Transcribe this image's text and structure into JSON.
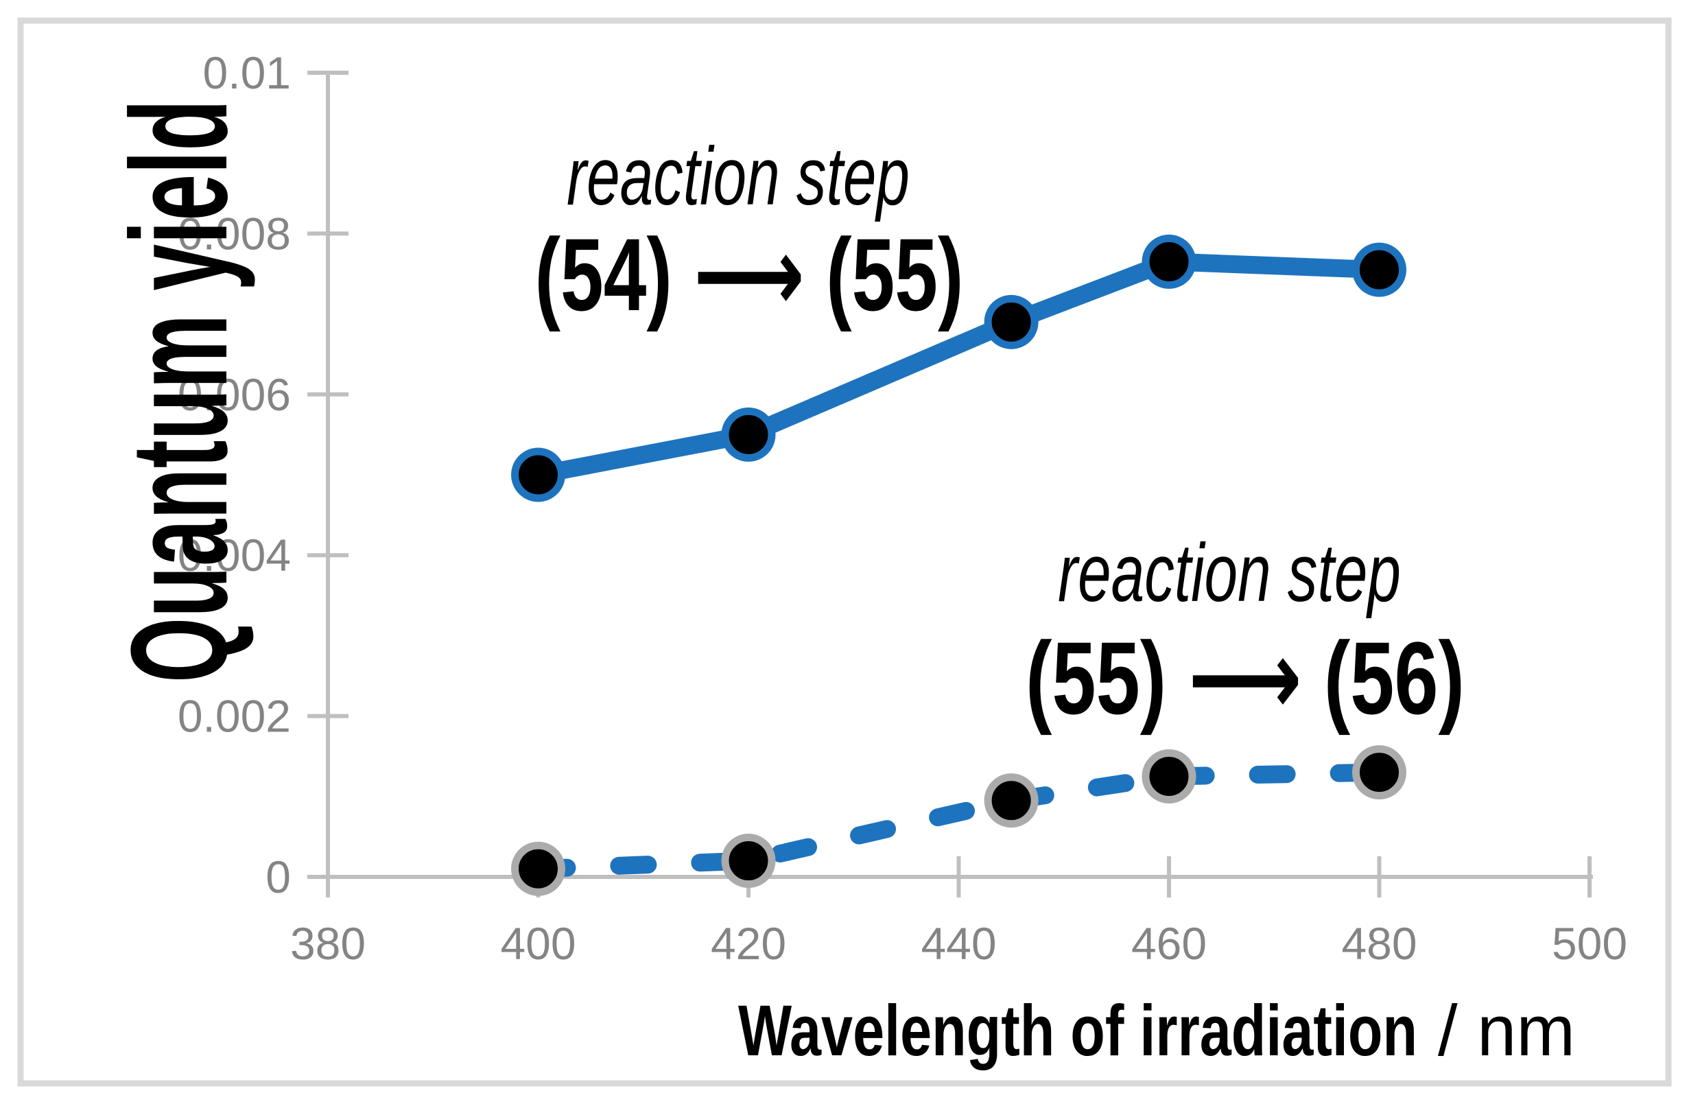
{
  "colors": {
    "series_blue": "#1E73BE",
    "marker_fill": "#000000",
    "dashed_marker_ring": "#ABABAB",
    "axis_line": "#BFBFBF",
    "tick_label": "#848484",
    "frame_border": "#D9D9D9",
    "text_black": "#000000",
    "background": "#FFFFFF"
  },
  "chart_data": {
    "type": "line",
    "title": "",
    "x": [
      400,
      420,
      445,
      460,
      480
    ],
    "series": [
      {
        "name": "reaction step (54) ⟶ (55)",
        "line_style": "solid",
        "values": [
          0.005,
          0.0055,
          0.0069,
          0.00765,
          0.00755
        ],
        "marker": "black circle with blue ring"
      },
      {
        "name": "reaction step (55) ⟶ (56)",
        "line_style": "dashed",
        "values": [
          0.0001,
          0.0002,
          0.00095,
          0.00125,
          0.0013
        ],
        "marker": "black circle with gray ring"
      }
    ],
    "xlabel_bold": "Wavelength of irradiation",
    "xlabel_unit": "/ nm",
    "ylabel": "Quantum yield",
    "xlim": [
      380,
      500
    ],
    "ylim": [
      0,
      0.01
    ],
    "xticks": [
      380,
      400,
      420,
      440,
      460,
      480,
      500
    ],
    "xtick_labels": [
      "380",
      "400",
      "420",
      "440",
      "460",
      "480",
      "500"
    ],
    "yticks": [
      0,
      0.002,
      0.004,
      0.006,
      0.008,
      0.01
    ],
    "ytick_labels": [
      "0",
      "0.002",
      "0.004",
      "0.006",
      "0.008",
      "0.01"
    ],
    "grid": false,
    "legend_position": "none",
    "annotations": [
      {
        "label": "reaction step",
        "formula": "(54) ⟶ (55)",
        "refers_to": "solid series"
      },
      {
        "label": "reaction step",
        "formula": "(55) ⟶ (56)",
        "refers_to": "dashed series"
      }
    ]
  }
}
